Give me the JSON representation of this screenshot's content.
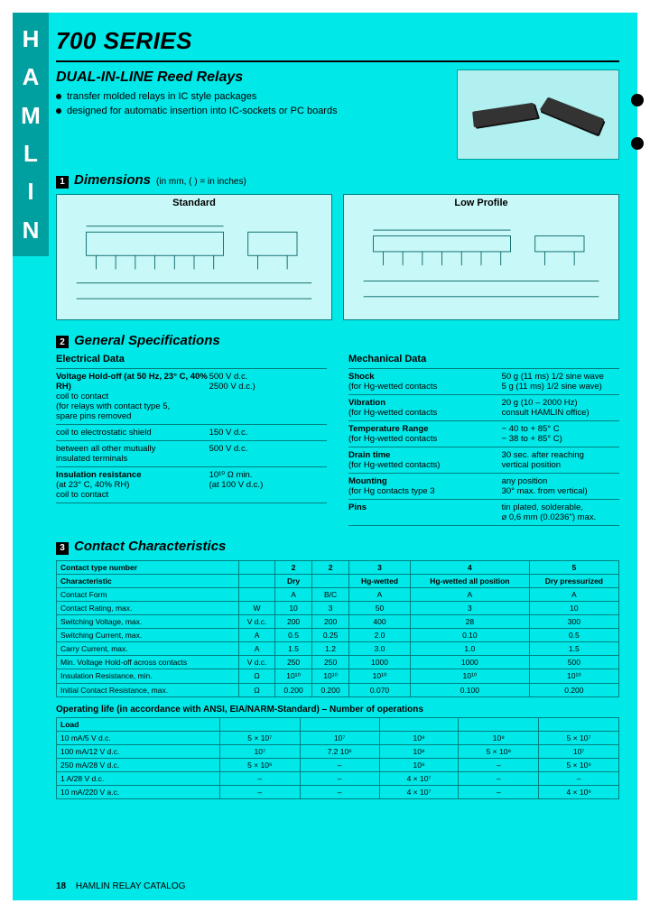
{
  "brand": [
    "H",
    "A",
    "M",
    "L",
    "I",
    "N"
  ],
  "series_title": "700 SERIES",
  "subtitle": "DUAL-IN-LINE Reed Relays",
  "bullets": [
    "transfer molded relays in IC style packages",
    "designed for automatic insertion into IC-sockets or PC boards"
  ],
  "sections": {
    "dimensions": {
      "num": "1",
      "title": "Dimensions",
      "note": "(in mm, ( ) = in inches)"
    },
    "general": {
      "num": "2",
      "title": "General Specifications"
    },
    "contact": {
      "num": "3",
      "title": "Contact Characteristics"
    }
  },
  "dim_boxes": {
    "standard": "Standard",
    "lowprofile": "Low Profile"
  },
  "elec_heading": "Electrical Data",
  "mech_heading": "Mechanical Data",
  "elec": [
    {
      "l": "Voltage Hold-off (at 50 Hz, 23° C, 40% RH)\ncoil to contact\n(for relays with contact type 5,\nspare pins removed",
      "r": "500 V d.c.\n\n2500 V d.c.)",
      "b": true
    },
    {
      "l": "coil to electrostatic shield",
      "r": "150 V d.c."
    },
    {
      "l": "between all other mutually\ninsulated terminals",
      "r": "500 V d.c."
    },
    {
      "l": "Insulation resistance\n(at 23° C, 40% RH)\ncoil to contact",
      "r": "\n\n10¹⁰ Ω min.\n(at 100 V d.c.)",
      "b": true
    }
  ],
  "mech": [
    {
      "l": "Shock\n(for Hg-wetted contacts",
      "r": "50 g (11 ms) 1/2 sine wave\n5 g (11 ms) 1/2 sine wave)",
      "b": true
    },
    {
      "l": "Vibration\n(for Hg-wetted contacts",
      "r": "20 g (10 – 2000 Hz)\nconsult HAMLIN office)",
      "b": true
    },
    {
      "l": "Temperature Range\n(for Hg-wetted contacts",
      "r": "− 40 to + 85° C\n− 38 to + 85° C)",
      "b": true
    },
    {
      "l": "Drain time\n(for Hg-wetted contacts)",
      "r": "30 sec. after reaching\nvertical position",
      "b": true
    },
    {
      "l": "Mounting\n(for Hg contacts type 3",
      "r": "any position\n30° max. from vertical)",
      "b": true
    },
    {
      "l": "Pins",
      "r": "tin plated, solderable,\n⌀ 0,6 mm (0.0236\") max.",
      "b": true
    }
  ],
  "char_header": [
    "Contact type number",
    "",
    "2",
    "2",
    "3",
    "4",
    "5"
  ],
  "char_sub": [
    "Characteristic",
    "",
    "Dry",
    "",
    "Hg-wetted",
    "Hg-wetted all position",
    "Dry pressurized"
  ],
  "char_rows": [
    [
      "Contact Form",
      "",
      "A",
      "B/C",
      "A",
      "A",
      "A"
    ],
    [
      "Contact Rating, max.",
      "W",
      "10",
      "3",
      "50",
      "3",
      "10"
    ],
    [
      "Switching Voltage, max.",
      "V d.c.",
      "200",
      "200",
      "400",
      "28",
      "300"
    ],
    [
      "Switching Current, max.",
      "A",
      "0.5",
      "0.25",
      "2.0",
      "0.10",
      "0.5"
    ],
    [
      "Carry Current, max.",
      "A",
      "1.5",
      "1.2",
      "3.0",
      "1.0",
      "1.5"
    ],
    [
      "Min. Voltage Hold-off across contacts",
      "V d.c.",
      "250",
      "250",
      "1000",
      "1000",
      "500"
    ],
    [
      "Insulation Resistance, min.",
      "Ω",
      "10¹⁰",
      "10¹⁰",
      "10¹⁰",
      "10¹⁰",
      "10¹⁰"
    ],
    [
      "Initial Contact Resistance, max.",
      "Ω",
      "0.200",
      "0.200",
      "0.070",
      "0.100",
      "0.200"
    ]
  ],
  "op_title": "Operating life (in accordance with ANSI, EIA/NARM-Standard) – Number of operations",
  "op_header": [
    "Load",
    "",
    "",
    "",
    "",
    ""
  ],
  "op_rows": [
    [
      "10 mA/5 V d.c.",
      "5 × 10⁷",
      "10⁷",
      "10⁹",
      "10⁹",
      "5 × 10⁷"
    ],
    [
      "100 mA/12 V d.c.",
      "10⁷",
      "7.2 10⁶",
      "10⁸",
      "5 × 10⁸",
      "10⁷"
    ],
    [
      "250 mA/28 V d.c.",
      "5 × 10⁶",
      "–",
      "10⁸",
      "–",
      "5 × 10⁶"
    ],
    [
      "1 A/28 V d.c.",
      "–",
      "–",
      "4 × 10⁷",
      "–",
      "–"
    ],
    [
      "10 mA/220 V a.c.",
      "–",
      "–",
      "4 × 10⁷",
      "–",
      "4 × 10⁶"
    ]
  ],
  "footer": {
    "page": "18",
    "catalog": "HAMLIN RELAY CATALOG"
  },
  "colors": {
    "page_bg": "#00e8e8",
    "brand_bg": "#00a0a0",
    "border": "#008080",
    "dim_bg": "#c8f8f8"
  }
}
